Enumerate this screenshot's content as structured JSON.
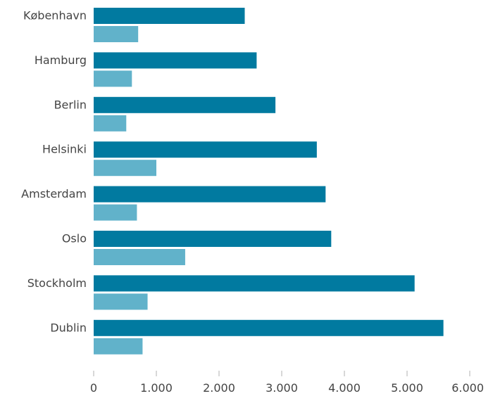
{
  "chart_data": {
    "type": "bar",
    "orientation": "horizontal",
    "categories": [
      "København",
      "Hamburg",
      "Berlin",
      "Helsinki",
      "Amsterdam",
      "Oslo",
      "Stockholm",
      "Dublin"
    ],
    "series": [
      {
        "color": "#017aa0",
        "values": [
          2410,
          2600,
          2900,
          3560,
          3700,
          3790,
          5120,
          5580
        ]
      },
      {
        "color": "#61b2ca",
        "values": [
          710,
          610,
          520,
          1000,
          690,
          1460,
          860,
          780
        ]
      }
    ],
    "xlim": [
      0,
      6000
    ],
    "xticks": [
      0,
      1000,
      2000,
      3000,
      4000,
      5000,
      6000
    ],
    "xtick_labels": [
      "0",
      "1.000",
      "2.000",
      "3.000",
      "4.000",
      "5.000",
      "6.000"
    ],
    "grid": false,
    "legend": "none"
  }
}
